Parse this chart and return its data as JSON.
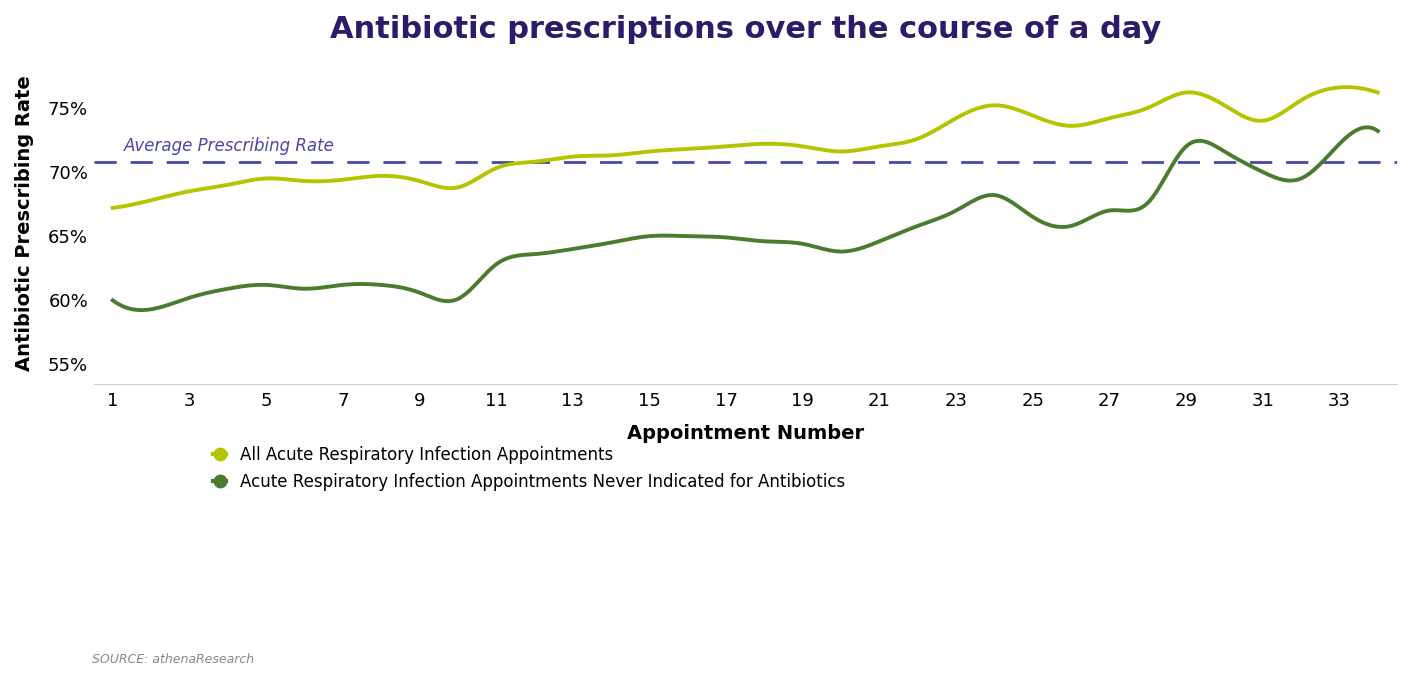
{
  "title": "Antibiotic prescriptions over the course of a day",
  "xlabel": "Appointment Number",
  "ylabel": "Antibiotic Prescribing Rate",
  "title_color": "#2d1b69",
  "title_fontsize": 22,
  "axis_label_fontsize": 14,
  "tick_fontsize": 13,
  "ylim": [
    0.535,
    0.785
  ],
  "yticks": [
    0.55,
    0.6,
    0.65,
    0.7,
    0.75
  ],
  "xticks": [
    1,
    3,
    5,
    7,
    9,
    11,
    13,
    15,
    17,
    19,
    21,
    23,
    25,
    27,
    29,
    31,
    33
  ],
  "avg_prescribing_rate": 0.708,
  "avg_label": "Average Prescribing Rate",
  "avg_line_color": "#4848a8",
  "line1_color": "#b5c400",
  "line2_color": "#4a7c2f",
  "line1_label": "All Acute Respiratory Infection Appointments",
  "line2_label": "Acute Respiratory Infection Appointments Never Indicated for Antibiotics",
  "source_text": "SOURCE: athenaResearch",
  "line1_x": [
    1,
    2,
    3,
    4,
    5,
    6,
    7,
    8,
    9,
    10,
    11,
    12,
    13,
    14,
    15,
    16,
    17,
    18,
    19,
    20,
    21,
    22,
    23,
    24,
    25,
    26,
    27,
    28,
    29,
    30,
    31,
    32,
    33,
    34
  ],
  "line1_y": [
    0.672,
    0.678,
    0.685,
    0.69,
    0.695,
    0.693,
    0.694,
    0.697,
    0.693,
    0.688,
    0.703,
    0.708,
    0.712,
    0.713,
    0.716,
    0.718,
    0.72,
    0.722,
    0.72,
    0.716,
    0.72,
    0.726,
    0.742,
    0.752,
    0.744,
    0.736,
    0.742,
    0.75,
    0.762,
    0.752,
    0.74,
    0.756,
    0.766,
    0.762
  ],
  "line2_x": [
    1,
    2,
    3,
    4,
    5,
    6,
    7,
    8,
    9,
    10,
    11,
    12,
    13,
    14,
    15,
    16,
    17,
    18,
    19,
    20,
    21,
    22,
    23,
    24,
    25,
    26,
    27,
    28,
    29,
    30,
    31,
    32,
    33,
    34
  ],
  "line2_y": [
    0.6,
    0.593,
    0.602,
    0.609,
    0.612,
    0.609,
    0.612,
    0.612,
    0.606,
    0.601,
    0.628,
    0.636,
    0.64,
    0.645,
    0.65,
    0.65,
    0.649,
    0.646,
    0.644,
    0.638,
    0.646,
    0.658,
    0.67,
    0.682,
    0.665,
    0.658,
    0.67,
    0.676,
    0.72,
    0.716,
    0.7,
    0.695,
    0.722,
    0.732
  ]
}
